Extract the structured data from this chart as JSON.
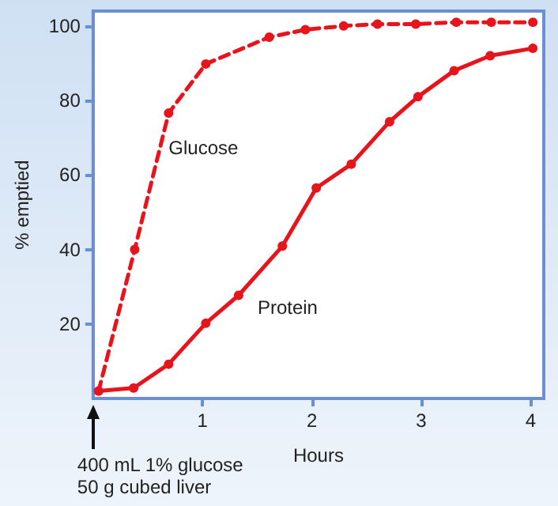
{
  "chart_data": {
    "type": "line",
    "xlabel": "Hours",
    "ylabel": "% emptied",
    "xlim": [
      0,
      4.12
    ],
    "ylim": [
      0,
      104
    ],
    "xticks": [
      1,
      2,
      3,
      4
    ],
    "yticks": [
      20,
      40,
      60,
      80,
      100
    ],
    "grid": false,
    "legend": false,
    "marker": "circle",
    "annotations": [
      "400 mL 1% glucose\n50 g cubed liver"
    ],
    "series": [
      {
        "name": "Glucose",
        "color": "#e8141c",
        "line_style": "dashed",
        "x": [
          0.05,
          0.38,
          0.69,
          1.03,
          1.61,
          1.94,
          2.29,
          2.6,
          2.95,
          3.32,
          3.64,
          4.02
        ],
        "values": [
          2,
          40,
          76.6,
          89.8,
          97,
          99,
          100,
          100.5,
          100.5,
          101,
          101,
          101
        ]
      },
      {
        "name": "Protein",
        "color": "#e8141c",
        "line_style": "solid",
        "x": [
          0.05,
          0.37,
          0.69,
          1.03,
          1.33,
          1.73,
          2.04,
          2.36,
          2.71,
          2.97,
          3.3,
          3.63,
          4.02
        ],
        "values": [
          2,
          2.8,
          9.2,
          20.2,
          27.7,
          40.9,
          56.5,
          62.9,
          74.3,
          81,
          88,
          92,
          94
        ]
      }
    ]
  }
}
